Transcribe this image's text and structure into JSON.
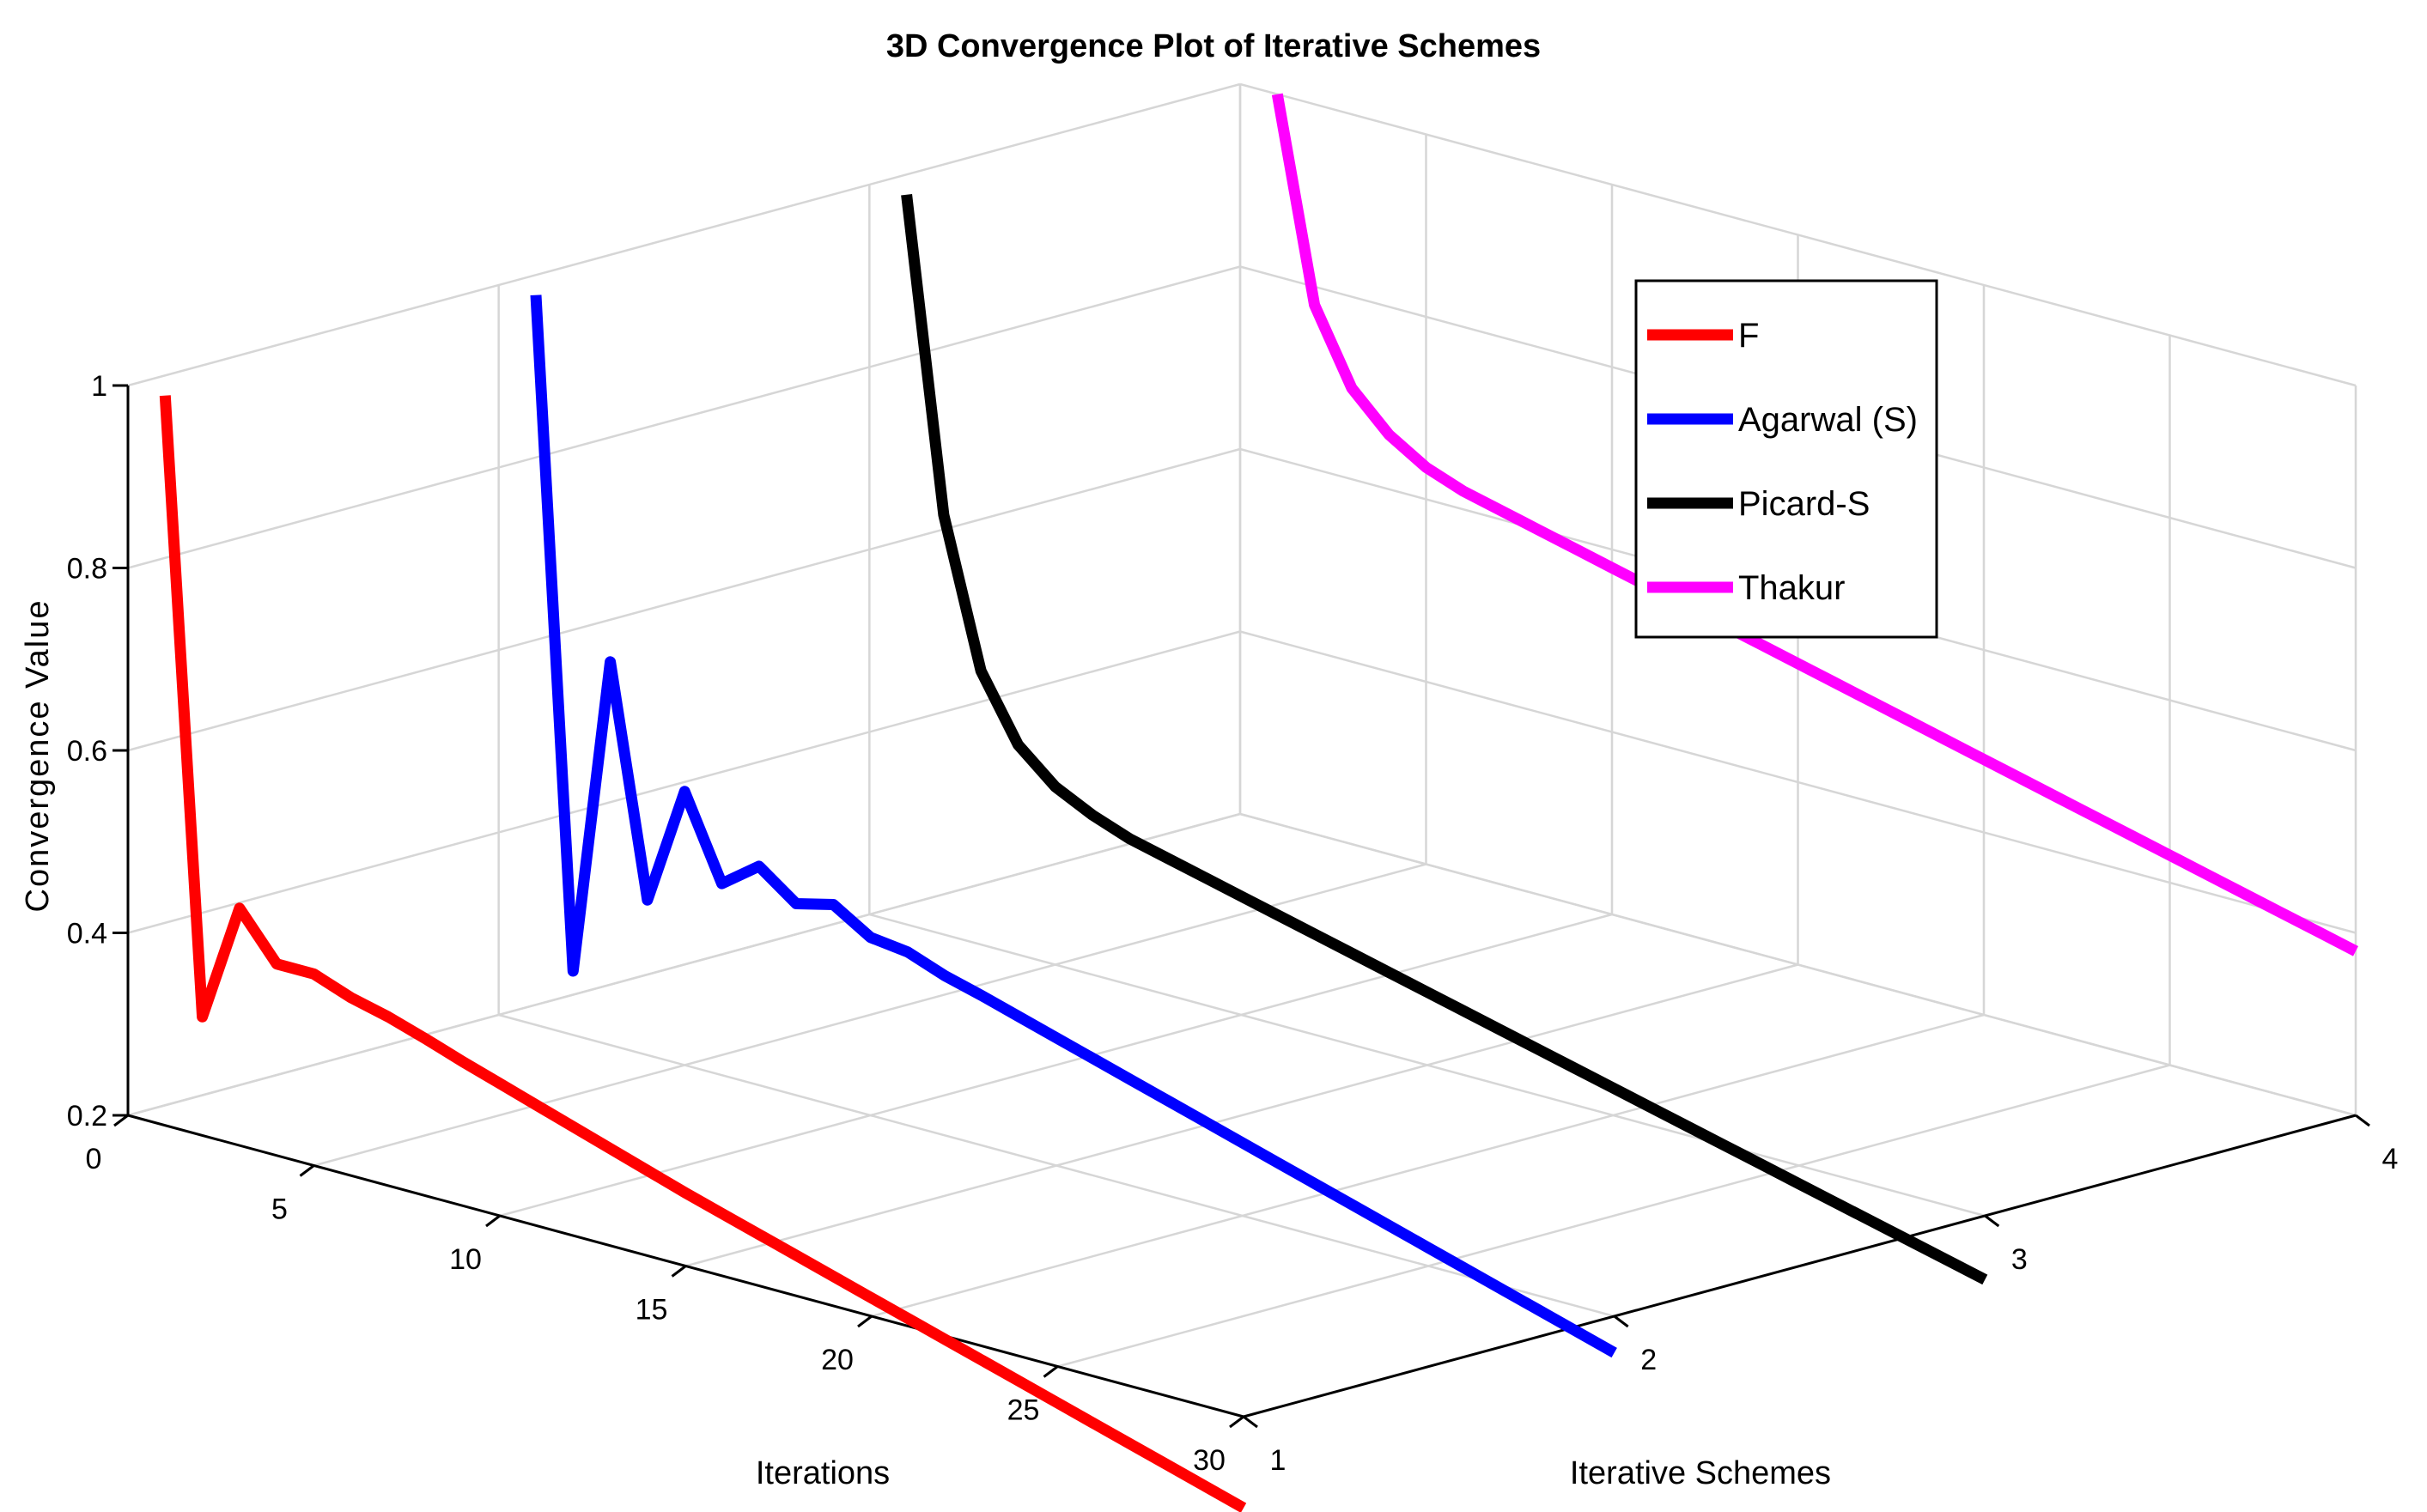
{
  "chart_data": {
    "type": "line3d",
    "title": "3D Convergence Plot of Iterative Schemes",
    "xlabel": "Iterations",
    "ylabel": "Iterative Schemes",
    "zlabel": "Convergence Value",
    "xlim": [
      0,
      30
    ],
    "ylim": [
      1,
      4
    ],
    "zlim": [
      0.2,
      1
    ],
    "xticks": [
      "0",
      "5",
      "10",
      "15",
      "20",
      "25",
      "30"
    ],
    "yticks": [
      "1",
      "2",
      "3",
      "4"
    ],
    "zticks": [
      "0.2",
      "0.4",
      "0.6",
      "0.8",
      "1"
    ],
    "grid": true,
    "legend_position": "top-right",
    "series": [
      {
        "name": "F",
        "scheme": 1,
        "color": "#ff0000",
        "x": [
          1,
          2,
          3,
          4,
          5,
          6,
          7,
          8,
          9,
          10,
          11,
          12,
          13,
          14,
          15,
          16,
          17,
          18,
          19,
          20,
          21,
          22,
          23,
          24,
          25,
          26,
          27,
          28,
          29,
          30
        ],
        "values": [
          1.0,
          0.33,
          0.46,
          0.41,
          0.41,
          0.395,
          0.385,
          0.372,
          0.358,
          0.345,
          0.332,
          0.319,
          0.306,
          0.293,
          0.28,
          0.268,
          0.256,
          0.244,
          0.232,
          0.22,
          0.208,
          0.196,
          0.184,
          0.172,
          0.16,
          0.148,
          0.136,
          0.124,
          0.112,
          0.1
        ]
      },
      {
        "name": "Agarwal (S)",
        "scheme": 2,
        "color": "#0000ff",
        "x": [
          1,
          2,
          3,
          4,
          5,
          6,
          7,
          8,
          9,
          10,
          11,
          12,
          13,
          14,
          15,
          16,
          17,
          18,
          19,
          20,
          21,
          22,
          23,
          24,
          25,
          26,
          27,
          28,
          29,
          30
        ],
        "values": [
          1.0,
          0.27,
          0.62,
          0.37,
          0.5,
          0.41,
          0.44,
          0.41,
          0.42,
          0.395,
          0.39,
          0.375,
          0.364,
          0.352,
          0.34,
          0.328,
          0.316,
          0.304,
          0.292,
          0.28,
          0.268,
          0.256,
          0.244,
          0.232,
          0.22,
          0.208,
          0.196,
          0.184,
          0.172,
          0.16
        ]
      },
      {
        "name": "Picard-S",
        "scheme": 3,
        "color": "#000000",
        "x": [
          1,
          2,
          3,
          4,
          5,
          6,
          7,
          8,
          9,
          10,
          11,
          12,
          13,
          14,
          15,
          16,
          17,
          18,
          19,
          20,
          21,
          22,
          23,
          24,
          25,
          26,
          27,
          28,
          29,
          30
        ],
        "values": [
          1.0,
          0.66,
          0.5,
          0.43,
          0.395,
          0.375,
          0.36,
          0.35,
          0.34,
          0.33,
          0.32,
          0.31,
          0.3,
          0.29,
          0.28,
          0.27,
          0.26,
          0.25,
          0.24,
          0.23,
          0.22,
          0.21,
          0.2,
          0.19,
          0.18,
          0.17,
          0.16,
          0.15,
          0.14,
          0.13
        ]
      },
      {
        "name": "Thakur",
        "scheme": 4,
        "color": "#ff00ff",
        "x": [
          1,
          2,
          3,
          4,
          5,
          6,
          7,
          8,
          9,
          10,
          11,
          12,
          13,
          14,
          15,
          16,
          17,
          18,
          19,
          20,
          21,
          22,
          23,
          24,
          25,
          26,
          27,
          28,
          29,
          30
        ],
        "values": [
          1.0,
          0.78,
          0.7,
          0.66,
          0.635,
          0.62,
          0.61,
          0.6,
          0.59,
          0.58,
          0.57,
          0.56,
          0.55,
          0.54,
          0.53,
          0.52,
          0.51,
          0.5,
          0.49,
          0.48,
          0.47,
          0.46,
          0.45,
          0.44,
          0.43,
          0.42,
          0.41,
          0.4,
          0.39,
          0.38
        ]
      }
    ]
  }
}
